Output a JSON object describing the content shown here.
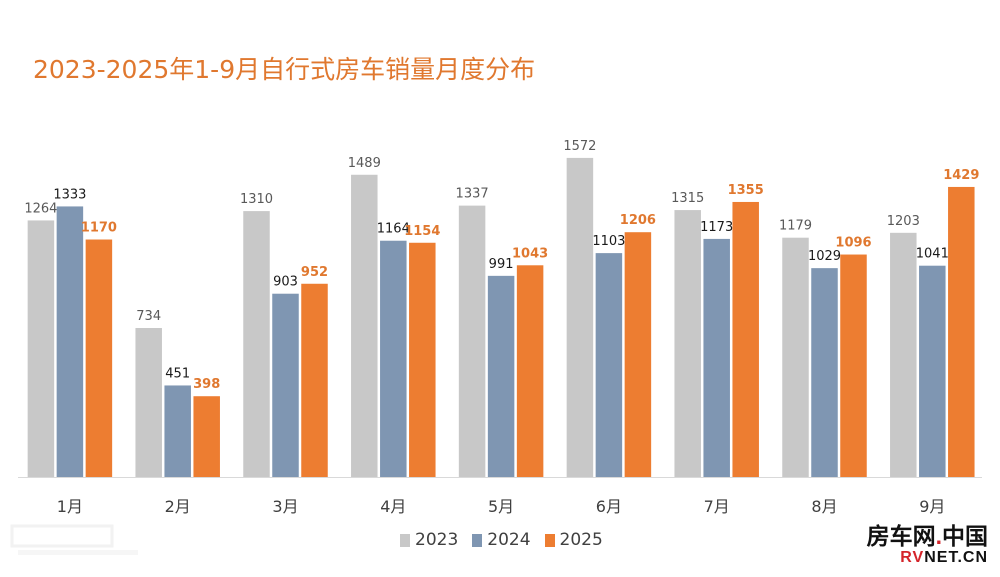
{
  "chart_data": {
    "type": "bar",
    "title": "2023-2025年1-9月自行式房车销量月度分布",
    "categories": [
      "1月",
      "2月",
      "3月",
      "4月",
      "5月",
      "6月",
      "7月",
      "8月",
      "9月"
    ],
    "series": [
      {
        "name": "2023",
        "color": "#C8C8C8",
        "label_color": "#595959",
        "values": [
          1264,
          734,
          1310,
          1489,
          1337,
          1572,
          1315,
          1179,
          1203
        ]
      },
      {
        "name": "2024",
        "color": "#7F96B2",
        "label_color": "#1A1A1A",
        "values": [
          1333,
          451,
          903,
          1164,
          991,
          1103,
          1173,
          1029,
          1041
        ]
      },
      {
        "name": "2025",
        "color": "#ED7D31",
        "label_color": "#E0782F",
        "values": [
          1170,
          398,
          952,
          1154,
          1043,
          1206,
          1355,
          1096,
          1429
        ]
      }
    ],
    "xlabel": "",
    "ylabel": "",
    "ylim": [
      0,
      2350
    ],
    "grid": false,
    "legend": "bottom-center"
  },
  "logo": {
    "cn_main": "房车网",
    "cn_dot": ".",
    "cn_tail": "中国",
    "en_red": "RV",
    "en_rest": "NET.CN"
  }
}
